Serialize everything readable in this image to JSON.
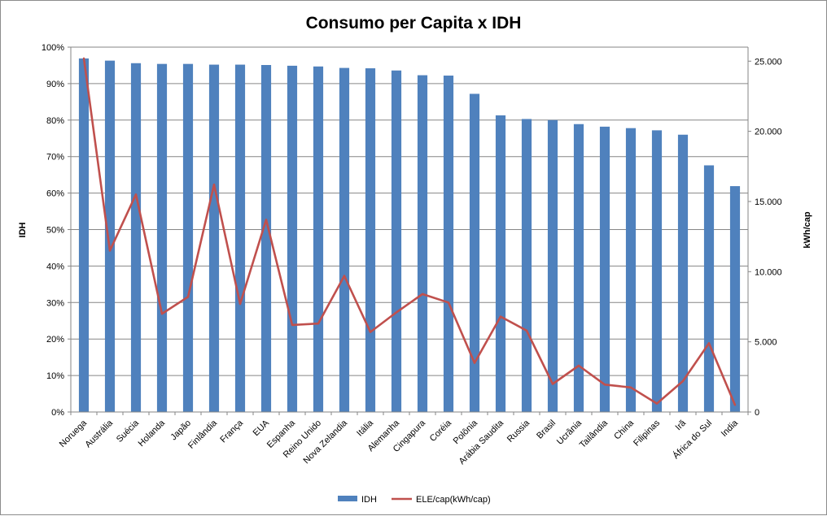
{
  "chart_data": {
    "type": "bar",
    "title": "Consumo per Capita x IDH",
    "ylabel": "IDH",
    "y2label": "kWh/cap",
    "ylim": [
      0,
      1.0
    ],
    "y2lim": [
      0,
      26000
    ],
    "y_ticks": [
      "0%",
      "10%",
      "20%",
      "30%",
      "40%",
      "50%",
      "60%",
      "70%",
      "80%",
      "90%",
      "100%"
    ],
    "y2_ticks": [
      "0",
      "5.000",
      "10.000",
      "15.000",
      "20.000",
      "25.000"
    ],
    "categories": [
      "Noruega",
      "Austrália",
      "Suécia",
      "Holanda",
      "Japão",
      "Finlândia",
      "França",
      "EUA",
      "Espanha",
      "Reino Unido",
      "Nova Zelandia",
      "Itália",
      "Alemanha",
      "Cingapura",
      "Coréia",
      "Polônia",
      "Arábia Saudita",
      "Russia",
      "Brasil",
      "Ucrânia",
      "Tailândia",
      "China",
      "Filipinas",
      "Irã",
      "África do Sul",
      "India"
    ],
    "series": [
      {
        "name": "IDH",
        "type": "bar",
        "axis": "left",
        "color": "#4f81bd",
        "values": [
          0.969,
          0.963,
          0.956,
          0.954,
          0.954,
          0.952,
          0.952,
          0.951,
          0.949,
          0.947,
          0.943,
          0.942,
          0.936,
          0.923,
          0.922,
          0.872,
          0.813,
          0.803,
          0.8,
          0.789,
          0.782,
          0.778,
          0.772,
          0.76,
          0.676,
          0.619
        ]
      },
      {
        "name": "ELE/cap(kWh/cap)",
        "type": "line",
        "axis": "right",
        "color": "#c0504d",
        "values": [
          25200,
          11500,
          15500,
          7000,
          8200,
          16200,
          7700,
          13700,
          6200,
          6300,
          9700,
          5700,
          7100,
          8400,
          7800,
          3500,
          6800,
          5800,
          2000,
          3300,
          1950,
          1750,
          600,
          2200,
          4900,
          500
        ]
      }
    ],
    "grid": true,
    "legend": "bottom"
  }
}
